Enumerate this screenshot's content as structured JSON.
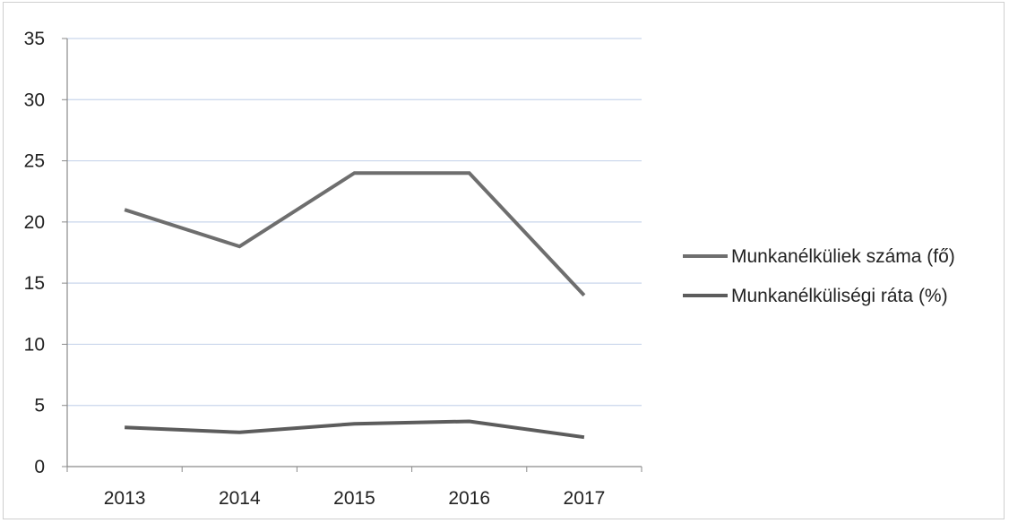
{
  "chart_data": {
    "type": "line",
    "title": "",
    "xlabel": "",
    "ylabel": "",
    "categories": [
      "2013",
      "2014",
      "2015",
      "2016",
      "2017"
    ],
    "ylim": [
      0,
      35
    ],
    "yticks": [
      0,
      5,
      10,
      15,
      20,
      25,
      30,
      35
    ],
    "ytick_labels": [
      "0",
      "5",
      "10",
      "15",
      "20",
      "25",
      "30",
      "35"
    ],
    "grid": true,
    "legend_position": "right",
    "series": [
      {
        "name": "Munkanélküliek száma (fő)",
        "values": [
          21,
          18,
          24,
          24,
          14
        ],
        "color": "#6e6e6e"
      },
      {
        "name": "Munkanélküliségi ráta (%)",
        "values": [
          3.2,
          2.8,
          3.5,
          3.7,
          2.4
        ],
        "color": "#5c5c5c"
      }
    ]
  }
}
